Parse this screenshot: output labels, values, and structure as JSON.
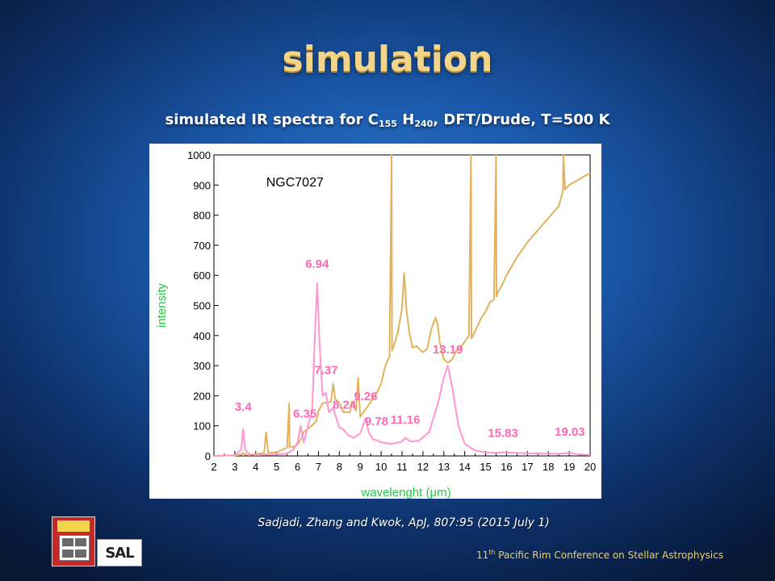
{
  "slide": {
    "title": "simulation",
    "subtitle_pre": "simulated IR spectra for C",
    "subtitle_sub1": "155",
    "subtitle_mid": " H",
    "subtitle_sub2": "240",
    "subtitle_post": ", DFT/Drude, T=500 K",
    "citation": "Sadjadi, Zhang and Kwok, ApJ, 807:95 (2015 July 1)",
    "footer_pre": "11",
    "footer_sup": "th",
    "footer_post": " Pacific Rim Conference on Stellar Astrophysics",
    "logos": [
      "university-crest",
      "sal-logo"
    ]
  },
  "colors": {
    "observed": "#e2b25c",
    "simulated": "#ff96cf",
    "peak_labels": "#ff69b4",
    "ylabel": "#22cc44",
    "xlabel": "#22cc44",
    "title": "#f2d48a",
    "footer": "#f2d060"
  },
  "chart_data": {
    "type": "line",
    "title": "",
    "annotation": "NGC7027",
    "xlabel": "wavelenght (μm)",
    "ylabel": "intensity",
    "xlim": [
      2,
      20
    ],
    "ylim": [
      0,
      1000
    ],
    "xticks": [
      2,
      3,
      4,
      5,
      6,
      7,
      8,
      9,
      10,
      11,
      12,
      13,
      14,
      15,
      16,
      17,
      18,
      19,
      20
    ],
    "yticks": [
      0,
      100,
      200,
      300,
      400,
      500,
      600,
      700,
      800,
      900,
      1000
    ],
    "grid": false,
    "series": [
      {
        "key": "observed",
        "x": [
          2.0,
          2.5,
          3.0,
          3.3,
          3.4,
          3.5,
          3.7,
          4.0,
          4.4,
          4.5,
          4.6,
          5.0,
          5.5,
          5.6,
          5.62,
          5.7,
          5.8,
          6.0,
          6.2,
          6.3,
          6.5,
          6.9,
          7.0,
          7.2,
          7.6,
          7.7,
          7.8,
          8.0,
          8.2,
          8.5,
          8.6,
          8.8,
          8.9,
          9.0,
          9.2,
          9.5,
          9.8,
          10.0,
          10.2,
          10.4,
          10.5,
          10.52,
          10.6,
          10.8,
          11.0,
          11.1,
          11.22,
          11.35,
          11.5,
          11.7,
          11.9,
          12.0,
          12.2,
          12.4,
          12.6,
          12.7,
          12.8,
          13.0,
          13.2,
          13.4,
          13.6,
          13.8,
          14.0,
          14.2,
          14.3,
          14.32,
          14.4,
          14.6,
          14.8,
          15.0,
          15.2,
          15.4,
          15.5,
          15.52,
          15.6,
          15.8,
          16.0,
          16.5,
          17.0,
          17.5,
          18.0,
          18.5,
          18.7,
          18.72,
          18.8,
          19.0,
          19.5,
          20.0
        ],
        "y": [
          0,
          1,
          2,
          4,
          10,
          4,
          3,
          6,
          10,
          78,
          10,
          12,
          28,
          175,
          30,
          30,
          30,
          38,
          60,
          80,
          90,
          115,
          150,
          175,
          180,
          240,
          190,
          175,
          145,
          145,
          180,
          150,
          260,
          130,
          150,
          180,
          210,
          240,
          300,
          330,
          1000,
          350,
          365,
          410,
          490,
          608,
          480,
          410,
          360,
          365,
          350,
          345,
          355,
          420,
          460,
          440,
          380,
          320,
          310,
          320,
          350,
          360,
          380,
          400,
          1000,
          390,
          400,
          430,
          460,
          480,
          510,
          520,
          1000,
          530,
          545,
          570,
          600,
          660,
          710,
          750,
          790,
          830,
          880,
          1000,
          885,
          900,
          920,
          940
        ]
      },
      {
        "key": "simulated",
        "x": [
          2.0,
          3.0,
          3.3,
          3.4,
          3.5,
          3.7,
          4.0,
          4.5,
          5.0,
          5.5,
          5.8,
          6.0,
          6.15,
          6.3,
          6.5,
          6.7,
          6.85,
          6.94,
          7.05,
          7.2,
          7.35,
          7.5,
          7.7,
          8.0,
          8.24,
          8.4,
          8.7,
          9.0,
          9.26,
          9.4,
          9.6,
          9.8,
          10.0,
          10.5,
          11.0,
          11.16,
          11.4,
          11.8,
          12.3,
          12.7,
          13.0,
          13.19,
          13.4,
          13.7,
          14.0,
          14.5,
          15.0,
          15.5,
          15.83,
          16.5,
          17.0,
          17.5,
          18.0,
          18.5,
          19.03,
          19.5,
          20.0
        ],
        "y": [
          0,
          2,
          20,
          90,
          20,
          5,
          3,
          4,
          5,
          8,
          20,
          45,
          100,
          45,
          100,
          150,
          440,
          575,
          380,
          200,
          210,
          145,
          160,
          95,
          85,
          70,
          60,
          75,
          125,
          80,
          55,
          52,
          45,
          40,
          48,
          60,
          48,
          50,
          80,
          170,
          260,
          300,
          230,
          100,
          40,
          18,
          12,
          10,
          12,
          10,
          8,
          9,
          8,
          7,
          10,
          5,
          3
        ]
      }
    ],
    "peak_labels": [
      {
        "text": "3.4",
        "x": 3.4,
        "y": 150
      },
      {
        "text": "6.35",
        "x": 6.35,
        "y": 127
      },
      {
        "text": "6.94",
        "x": 6.94,
        "y": 625
      },
      {
        "text": "7.37",
        "x": 7.37,
        "y": 272
      },
      {
        "text": "8.24",
        "x": 8.24,
        "y": 157
      },
      {
        "text": "9.26",
        "x": 9.26,
        "y": 185
      },
      {
        "text": "9.78",
        "x": 9.78,
        "y": 102
      },
      {
        "text": "11.16",
        "x": 11.16,
        "y": 107
      },
      {
        "text": "13.19",
        "x": 13.19,
        "y": 340
      },
      {
        "text": "15.83",
        "x": 15.83,
        "y": 63
      },
      {
        "text": "19.03",
        "x": 19.03,
        "y": 67
      }
    ]
  }
}
